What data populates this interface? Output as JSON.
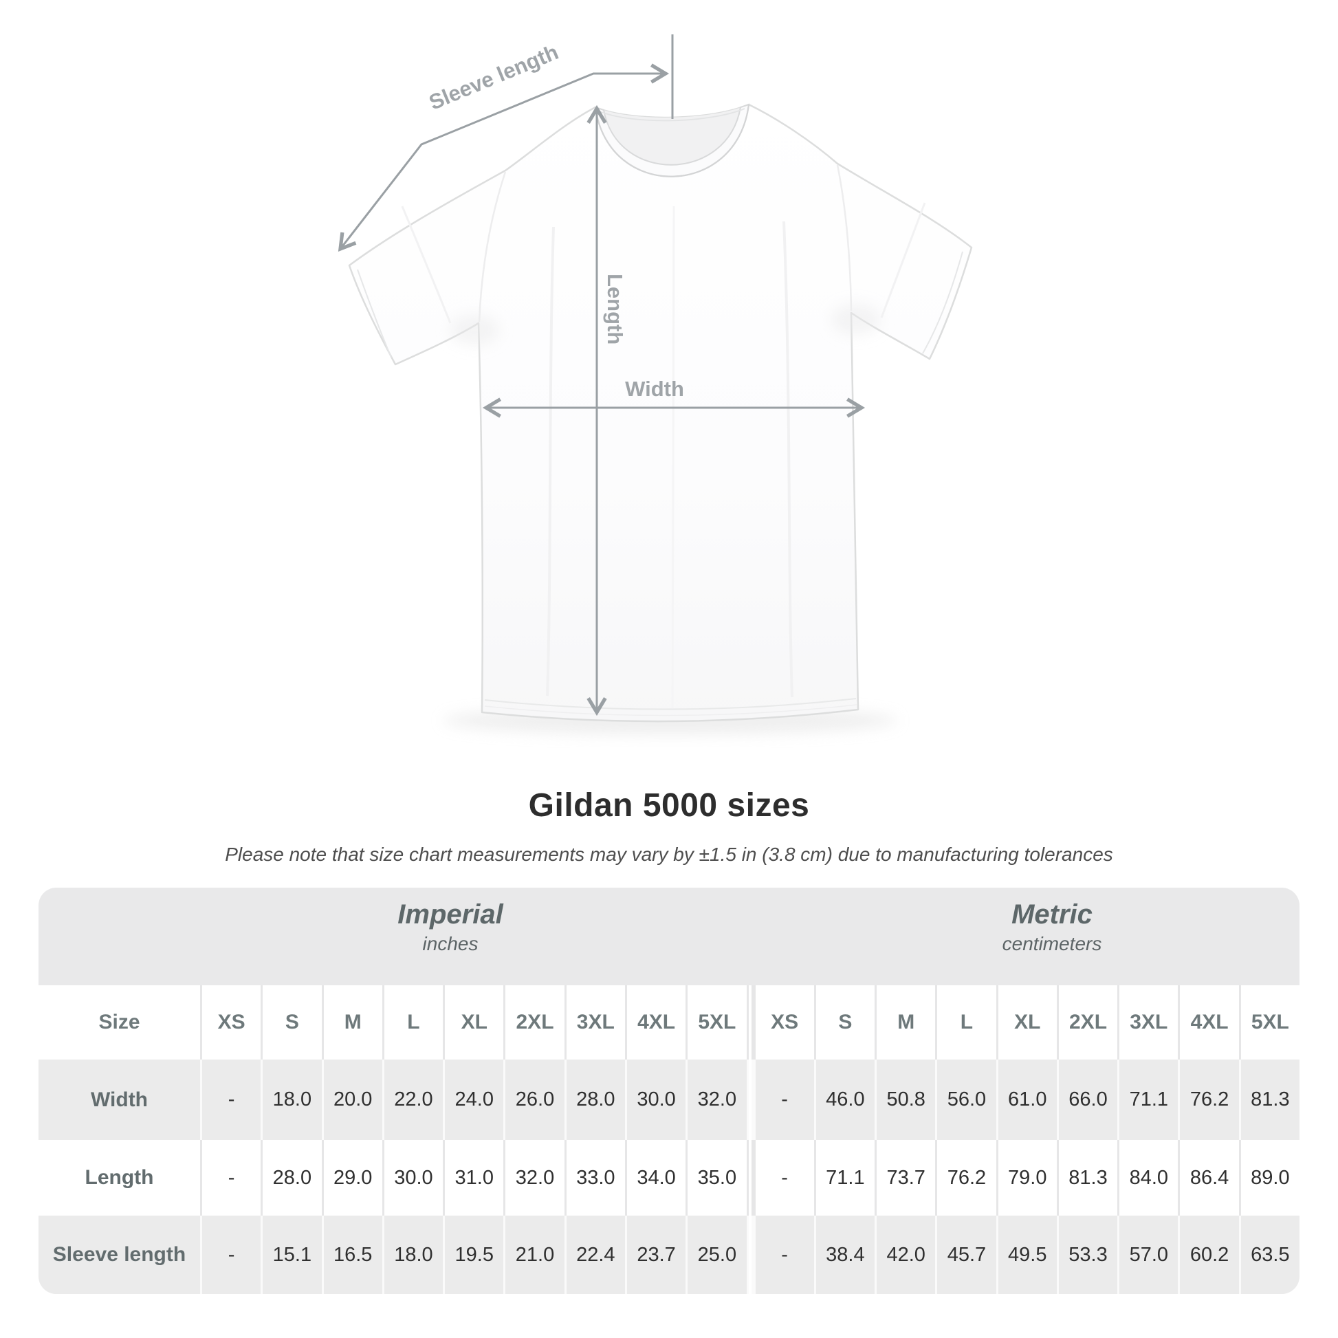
{
  "title": "Gildan 5000 sizes",
  "subtitle": "Please note that size chart measurements may vary by ±1.5 in (3.8 cm) due to manufacturing tolerances",
  "diagram": {
    "labels": {
      "sleeve_length": "Sleeve length",
      "length": "Length",
      "width": "Width"
    }
  },
  "table": {
    "size_column_label": "Size",
    "system_headers": [
      {
        "label": "Imperial",
        "unit": "inches"
      },
      {
        "label": "Metric",
        "unit": "centimeters"
      }
    ]
  },
  "chart_data": {
    "type": "table",
    "title": "Gildan 5000 sizes",
    "tolerance_note": "±1.5 in (3.8 cm) due to manufacturing tolerances",
    "size_labels": [
      "XS",
      "S",
      "M",
      "L",
      "XL",
      "2XL",
      "3XL",
      "4XL",
      "5XL"
    ],
    "units": {
      "imperial": "inches",
      "metric": "centimeters"
    },
    "rows": [
      {
        "measurement": "Width",
        "imperial_in": [
          "-",
          "18.0",
          "20.0",
          "22.0",
          "24.0",
          "26.0",
          "28.0",
          "30.0",
          "32.0"
        ],
        "metric_cm": [
          "-",
          "46.0",
          "50.8",
          "56.0",
          "61.0",
          "66.0",
          "71.1",
          "76.2",
          "81.3"
        ]
      },
      {
        "measurement": "Length",
        "imperial_in": [
          "-",
          "28.0",
          "29.0",
          "30.0",
          "31.0",
          "32.0",
          "33.0",
          "34.0",
          "35.0"
        ],
        "metric_cm": [
          "-",
          "71.1",
          "73.7",
          "76.2",
          "79.0",
          "81.3",
          "84.0",
          "86.4",
          "89.0"
        ]
      },
      {
        "measurement": "Sleeve length",
        "imperial_in": [
          "-",
          "15.1",
          "16.5",
          "18.0",
          "19.5",
          "21.0",
          "22.4",
          "23.7",
          "25.0"
        ],
        "metric_cm": [
          "-",
          "38.4",
          "42.0",
          "45.7",
          "49.5",
          "53.3",
          "57.0",
          "60.2",
          "63.5"
        ]
      }
    ]
  }
}
